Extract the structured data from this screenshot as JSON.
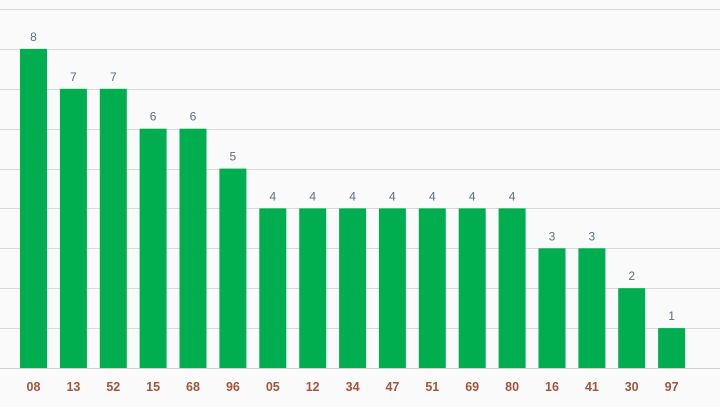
{
  "chart_data": {
    "type": "bar",
    "categories": [
      "08",
      "13",
      "52",
      "15",
      "68",
      "96",
      "05",
      "12",
      "34",
      "47",
      "51",
      "69",
      "80",
      "16",
      "41",
      "30",
      "97"
    ],
    "values": [
      8,
      7,
      7,
      6,
      6,
      5,
      4,
      4,
      4,
      4,
      4,
      4,
      4,
      3,
      3,
      2,
      1
    ],
    "title": "",
    "xlabel": "",
    "ylabel": "",
    "ylim": [
      0,
      9
    ],
    "grid": true,
    "legend": "none",
    "data_labels": true,
    "colors": {
      "bar": "#00ae4f",
      "value_label": "#5a6e86",
      "tick_label": "#a3543c",
      "grid": "#d9d9d9",
      "background": "#fafafa"
    }
  }
}
